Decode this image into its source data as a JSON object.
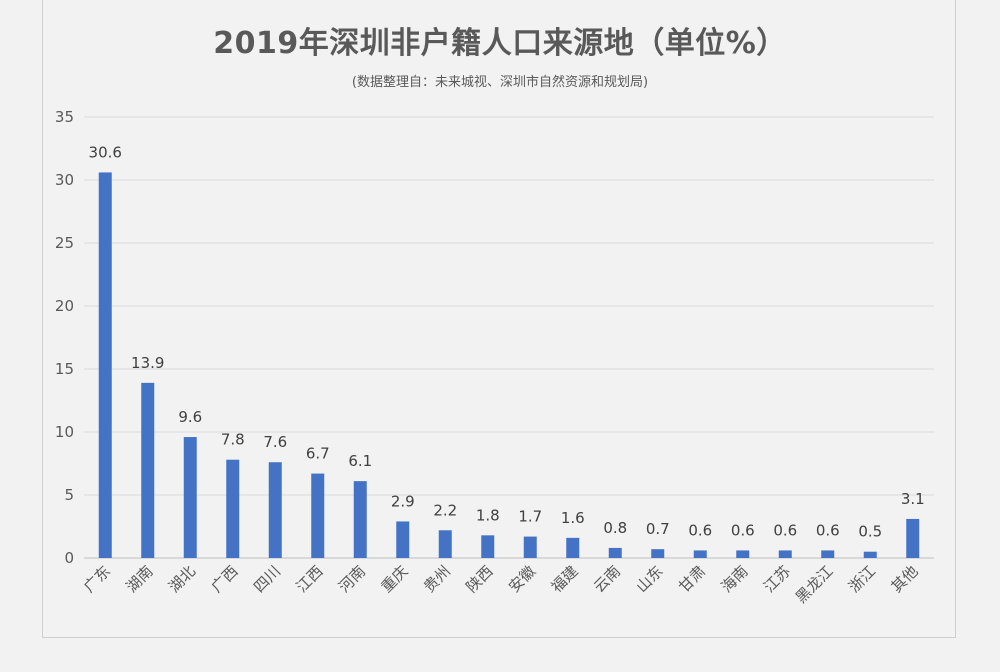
{
  "chart_data": {
    "type": "bar",
    "title": "2019年深圳非户籍人口来源地（单位%）",
    "subtitle": "(数据整理自：未来城视、深圳市自然资源和规划局)",
    "xlabel": "",
    "ylabel": "",
    "ylim": [
      0,
      35
    ],
    "yticks": [
      0,
      5,
      10,
      15,
      20,
      25,
      30,
      35
    ],
    "grid": true,
    "legend": "none",
    "bar_color": "#4472c4",
    "categories": [
      "广东",
      "湖南",
      "湖北",
      "广西",
      "四川",
      "江西",
      "河南",
      "重庆",
      "贵州",
      "陕西",
      "安徽",
      "福建",
      "云南",
      "山东",
      "甘肃",
      "海南",
      "江苏",
      "黑龙江",
      "浙江",
      "其他"
    ],
    "values": [
      30.6,
      13.9,
      9.6,
      7.8,
      7.6,
      6.7,
      6.1,
      2.9,
      2.2,
      1.8,
      1.7,
      1.6,
      0.8,
      0.7,
      0.6,
      0.6,
      0.6,
      0.6,
      0.5,
      3.1
    ],
    "data_labels": [
      "30.6",
      "13.9",
      "9.6",
      "7.8",
      "7.6",
      "6.7",
      "6.1",
      "2.9",
      "2.2",
      "1.8",
      "1.7",
      "1.6",
      "0.8",
      "0.7",
      "0.6",
      "0.6",
      "0.6",
      "0.6",
      "0.5",
      "3.1"
    ]
  }
}
